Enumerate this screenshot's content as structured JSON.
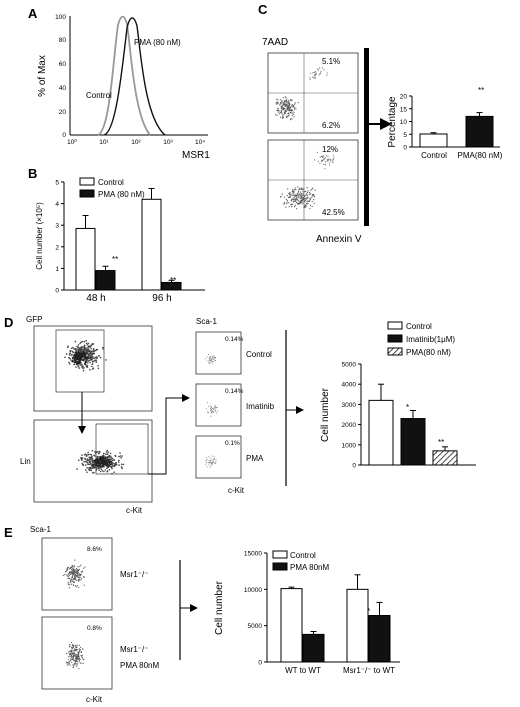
{
  "panels": {
    "A": {
      "letter": "A",
      "ylabel": "% of Max",
      "xlabel": "MSR1",
      "yticks": [
        "0",
        "20",
        "40",
        "60",
        "80",
        "100"
      ],
      "xticks": [
        "10⁰",
        "10¹",
        "10²",
        "10³",
        "10⁴"
      ],
      "label_control": "Control",
      "label_pma": "PMA (80 nM)"
    },
    "B": {
      "letter": "B",
      "ylabel": "Cell number (×10⁵)",
      "legend": [
        "Control",
        "PMA (80 nM)"
      ],
      "significance": [
        "**",
        "**"
      ]
    },
    "C": {
      "letter": "C",
      "y_facs_label": "7AAD",
      "x_facs_label": "Annexin V",
      "quadrants_top": [
        "5.1%",
        "6.2%"
      ],
      "quadrants_bottom": [
        "12%",
        "42.5%"
      ],
      "significance": "**"
    },
    "D": {
      "letter": "D",
      "gfp_label": "GFP",
      "lin_label": "Lin",
      "ckit_label": "c-Kit",
      "sca1_label": "Sca-1",
      "ckit_label2": "c-Kit",
      "small_plots": [
        {
          "label": "Control",
          "pct": "0.14%"
        },
        {
          "label": "Imatinib",
          "pct": "0.14%"
        },
        {
          "label": "PMA",
          "pct": "0.1%"
        }
      ],
      "legend": [
        "Control",
        "Imatinib(1μM)",
        "PMA(80 nM)"
      ],
      "significance": [
        "*",
        "**"
      ]
    },
    "E": {
      "letter": "E",
      "sca1_label": "Sca-1",
      "ckit_label": "c-Kit",
      "plot1": {
        "label": "Msr1⁻/⁻",
        "pct": "8.6%"
      },
      "plot2": {
        "label": "Msr1⁻/⁻",
        "sub": "PMA 80nM",
        "pct": "0.8%"
      },
      "legend": [
        "Control",
        "PMA 80nM"
      ],
      "significance": [
        "**",
        "*"
      ]
    }
  },
  "chart_data": [
    {
      "type": "bar",
      "id": "B",
      "categories": [
        "48 h",
        "96 h"
      ],
      "series": [
        {
          "name": "Control",
          "values": [
            2.85,
            4.2
          ],
          "errors": [
            0.6,
            0.5
          ]
        },
        {
          "name": "PMA (80 nM)",
          "values": [
            0.9,
            0.35
          ],
          "errors": [
            0.2,
            0.1
          ]
        }
      ],
      "ylabel": "Cell number (×10⁵)",
      "ylim": [
        0,
        5
      ],
      "yticks": [
        0,
        1,
        2,
        3,
        4,
        5
      ]
    },
    {
      "type": "bar",
      "id": "C",
      "categories": [
        "Control",
        "PMA(80 nM)"
      ],
      "values": [
        5.1,
        12.0
      ],
      "errors": [
        0.5,
        1.5
      ],
      "ylabel": "Percentage",
      "ylim": [
        0,
        20
      ],
      "yticks": [
        0,
        5,
        10,
        15,
        20
      ]
    },
    {
      "type": "bar",
      "id": "D",
      "categories": [
        "Control",
        "Imatinib(1μM)",
        "PMA(80 nM)"
      ],
      "values": [
        3200,
        2300,
        700
      ],
      "errors": [
        800,
        400,
        200
      ],
      "ylabel": "Cell number",
      "ylim": [
        0,
        5000
      ],
      "yticks": [
        0,
        1000,
        2000,
        3000,
        4000,
        5000
      ]
    },
    {
      "type": "bar",
      "id": "E",
      "categories": [
        "WT to WT",
        "Msr1⁻/⁻ to WT"
      ],
      "series": [
        {
          "name": "Control",
          "values": [
            10100,
            10000
          ],
          "errors": [
            200,
            2000
          ]
        },
        {
          "name": "PMA 80nM",
          "values": [
            3800,
            6400
          ],
          "errors": [
            400,
            1800
          ]
        }
      ],
      "ylabel": "Cell number",
      "ylim": [
        0,
        15000
      ],
      "yticks": [
        0,
        5000,
        10000,
        15000
      ]
    }
  ]
}
